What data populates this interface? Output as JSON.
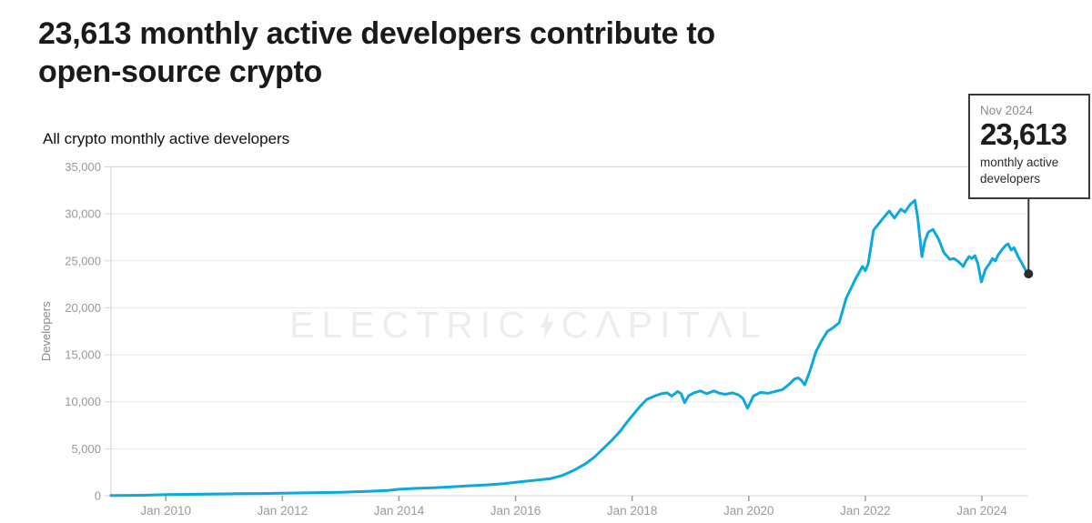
{
  "page": {
    "title": "23,613 monthly active developers contribute to\nopen-source crypto",
    "subtitle": "All crypto monthly active developers"
  },
  "watermark": {
    "left": "ELECTRIC",
    "right": "CΛPITΛL",
    "bolt_icon": "lightning-bolt"
  },
  "callout": {
    "date": "Nov 2024",
    "value": "23,613",
    "caption": "monthly active developers"
  },
  "colors": {
    "line": "#0ca8e0",
    "grid": "#e9e9e9",
    "axis_border": "#d6d6d6",
    "tick_mark": "#9e9e9e",
    "tick_label": "#9a9a9a",
    "axis_title": "#8a8a8a",
    "marker": "#2b2b2b",
    "callout_border": "#3a3a3a",
    "watermark": "#ededed",
    "title_text": "#1a1a1a"
  },
  "chart_data": {
    "type": "line",
    "title": "All crypto monthly active developers",
    "xlabel": "",
    "ylabel": "Developers",
    "legend": "none",
    "grid": "horizontal",
    "x_unit": "decimal_year",
    "x_range": [
      2009.06,
      2024.78
    ],
    "y_range": [
      0,
      35000
    ],
    "y_ticks": [
      0,
      5000,
      10000,
      15000,
      20000,
      25000,
      30000,
      35000
    ],
    "x_ticks": [
      {
        "t": 2010,
        "label": "Jan 2010"
      },
      {
        "t": 2012,
        "label": "Jan 2012"
      },
      {
        "t": 2014,
        "label": "Jan 2014"
      },
      {
        "t": 2016,
        "label": "Jan 2016"
      },
      {
        "t": 2018,
        "label": "Jan 2018"
      },
      {
        "t": 2020,
        "label": "Jan 2020"
      },
      {
        "t": 2022,
        "label": "Jan 2022"
      },
      {
        "t": 2024,
        "label": "Jan 2024"
      }
    ],
    "series": [
      {
        "name": "All crypto monthly active developers",
        "points": [
          [
            2009.06,
            15
          ],
          [
            2009.4,
            35
          ],
          [
            2009.7,
            60
          ],
          [
            2010.0,
            120
          ],
          [
            2010.4,
            150
          ],
          [
            2010.8,
            180
          ],
          [
            2011.2,
            210
          ],
          [
            2011.6,
            235
          ],
          [
            2012.0,
            265
          ],
          [
            2012.5,
            310
          ],
          [
            2013.0,
            370
          ],
          [
            2013.5,
            470
          ],
          [
            2013.8,
            560
          ],
          [
            2014.0,
            690
          ],
          [
            2014.3,
            780
          ],
          [
            2014.6,
            850
          ],
          [
            2014.9,
            950
          ],
          [
            2015.2,
            1060
          ],
          [
            2015.5,
            1150
          ],
          [
            2015.8,
            1280
          ],
          [
            2016.0,
            1420
          ],
          [
            2016.3,
            1620
          ],
          [
            2016.6,
            1820
          ],
          [
            2016.8,
            2150
          ],
          [
            2017.0,
            2700
          ],
          [
            2017.2,
            3400
          ],
          [
            2017.35,
            4100
          ],
          [
            2017.5,
            5000
          ],
          [
            2017.65,
            5900
          ],
          [
            2017.8,
            6900
          ],
          [
            2017.92,
            7900
          ],
          [
            2018.0,
            8500
          ],
          [
            2018.12,
            9400
          ],
          [
            2018.25,
            10250
          ],
          [
            2018.4,
            10650
          ],
          [
            2018.5,
            10850
          ],
          [
            2018.6,
            10950
          ],
          [
            2018.68,
            10600
          ],
          [
            2018.78,
            11100
          ],
          [
            2018.84,
            10850
          ],
          [
            2018.9,
            9900
          ],
          [
            2018.97,
            10650
          ],
          [
            2019.06,
            10950
          ],
          [
            2019.17,
            11150
          ],
          [
            2019.28,
            10850
          ],
          [
            2019.4,
            11150
          ],
          [
            2019.5,
            10900
          ],
          [
            2019.6,
            10800
          ],
          [
            2019.72,
            10950
          ],
          [
            2019.82,
            10750
          ],
          [
            2019.9,
            10350
          ],
          [
            2019.98,
            9300
          ],
          [
            2020.08,
            10600
          ],
          [
            2020.2,
            11000
          ],
          [
            2020.33,
            10900
          ],
          [
            2020.45,
            11100
          ],
          [
            2020.58,
            11300
          ],
          [
            2020.7,
            11900
          ],
          [
            2020.78,
            12400
          ],
          [
            2020.85,
            12550
          ],
          [
            2020.9,
            12300
          ],
          [
            2020.96,
            11800
          ],
          [
            2021.05,
            13300
          ],
          [
            2021.15,
            15300
          ],
          [
            2021.25,
            16500
          ],
          [
            2021.35,
            17500
          ],
          [
            2021.45,
            17900
          ],
          [
            2021.55,
            18400
          ],
          [
            2021.67,
            21000
          ],
          [
            2021.83,
            23050
          ],
          [
            2021.95,
            24400
          ],
          [
            2022.0,
            23950
          ],
          [
            2022.05,
            24700
          ],
          [
            2022.14,
            28250
          ],
          [
            2022.3,
            29500
          ],
          [
            2022.41,
            30300
          ],
          [
            2022.5,
            29550
          ],
          [
            2022.61,
            30500
          ],
          [
            2022.68,
            30200
          ],
          [
            2022.77,
            31000
          ],
          [
            2022.85,
            31450
          ],
          [
            2022.9,
            29500
          ],
          [
            2022.97,
            25450
          ],
          [
            2023.02,
            27100
          ],
          [
            2023.08,
            28050
          ],
          [
            2023.16,
            28350
          ],
          [
            2023.25,
            27400
          ],
          [
            2023.35,
            25850
          ],
          [
            2023.45,
            25150
          ],
          [
            2023.52,
            25250
          ],
          [
            2023.6,
            24900
          ],
          [
            2023.68,
            24400
          ],
          [
            2023.73,
            25000
          ],
          [
            2023.78,
            25450
          ],
          [
            2023.83,
            25250
          ],
          [
            2023.88,
            25550
          ],
          [
            2023.93,
            24700
          ],
          [
            2023.99,
            22750
          ],
          [
            2024.06,
            24100
          ],
          [
            2024.13,
            24700
          ],
          [
            2024.18,
            25250
          ],
          [
            2024.23,
            25000
          ],
          [
            2024.28,
            25650
          ],
          [
            2024.35,
            26250
          ],
          [
            2024.41,
            26650
          ],
          [
            2024.45,
            26800
          ],
          [
            2024.5,
            26150
          ],
          [
            2024.55,
            26400
          ],
          [
            2024.62,
            25450
          ],
          [
            2024.69,
            24700
          ],
          [
            2024.75,
            24000
          ],
          [
            2024.8,
            23613
          ]
        ]
      }
    ],
    "end_marker": {
      "t": 2024.8,
      "value": 23613,
      "date_label": "Nov 2024",
      "value_label": "23,613"
    }
  }
}
